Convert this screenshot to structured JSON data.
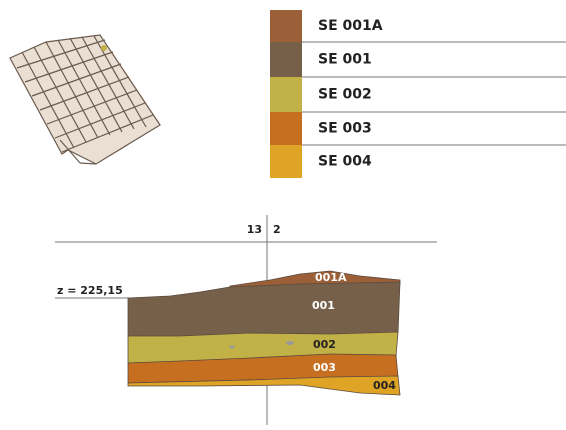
{
  "legend": {
    "items": [
      {
        "label": "SE 001A",
        "color": "#9b6038"
      },
      {
        "label": "SE 001",
        "color": "#76604a"
      },
      {
        "label": "SE 002",
        "color": "#c2b146"
      },
      {
        "label": "SE 003",
        "color": "#c76f21"
      },
      {
        "label": "SE 004",
        "color": "#dfa425"
      }
    ]
  },
  "profile": {
    "axis_labels": [
      "13",
      "2"
    ],
    "elevation": "z = 225,15",
    "layers": [
      {
        "label": "001A",
        "legend": 0
      },
      {
        "label": "001",
        "legend": 1
      },
      {
        "label": "002",
        "legend": 2
      },
      {
        "label": "003",
        "legend": 3
      },
      {
        "label": "004",
        "legend": 4
      }
    ]
  }
}
